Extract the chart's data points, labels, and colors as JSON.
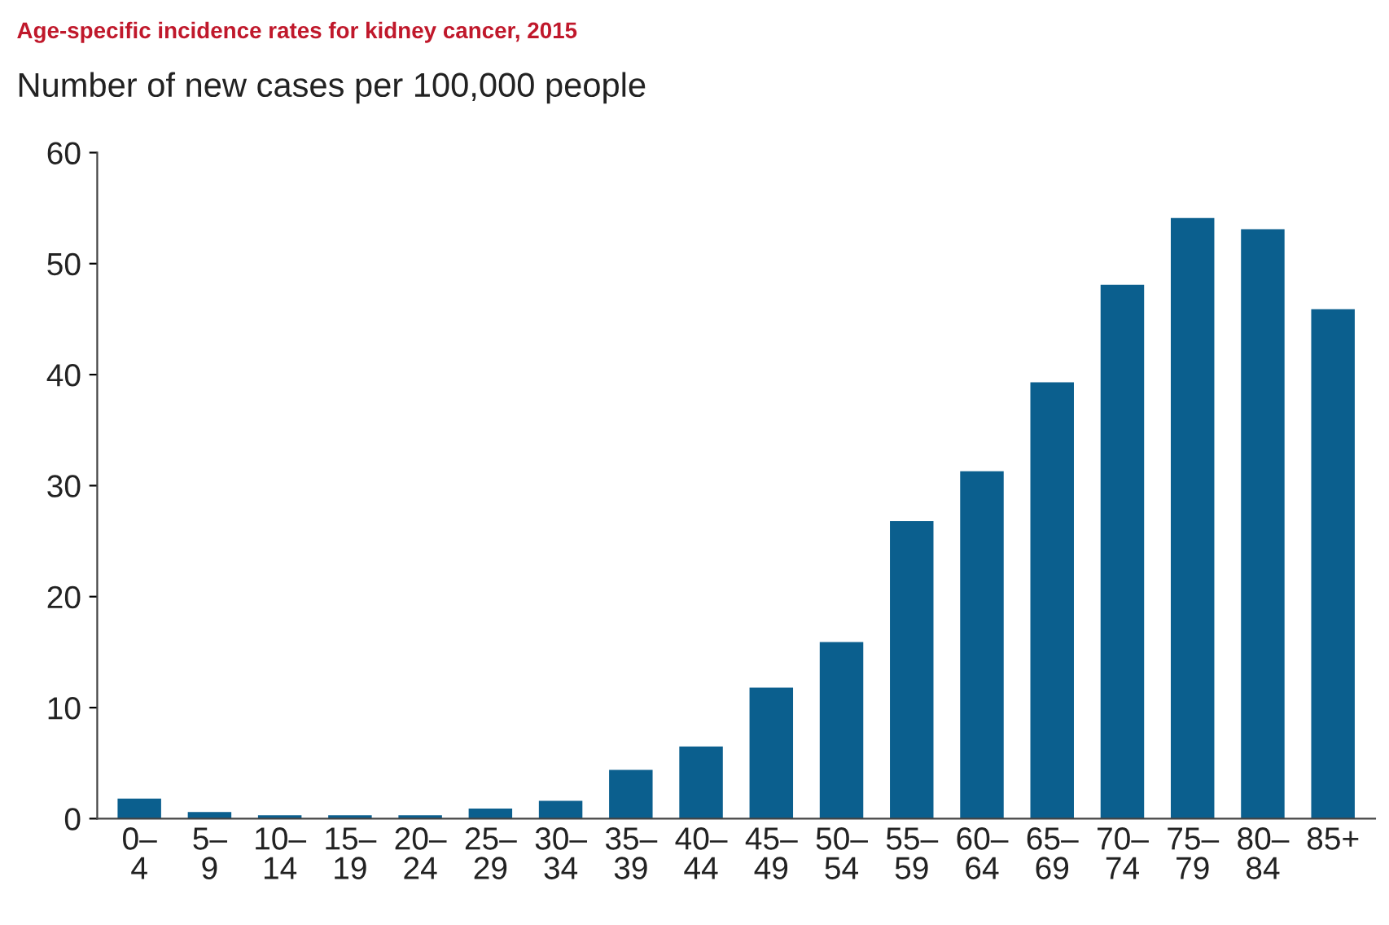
{
  "chart_data": {
    "type": "bar",
    "title": "Age-specific incidence rates for kidney cancer, 2015",
    "ylabel": "Number of new cases per 100,000 people",
    "categories": [
      "0–\n4",
      "5–\n9",
      "10–\n14",
      "15–\n19",
      "20–\n24",
      "25–\n29",
      "30–\n34",
      "35–\n39",
      "40–\n44",
      "45–\n49",
      "50–\n54",
      "55–\n59",
      "60–\n64",
      "65–\n69",
      "70–\n74",
      "75–\n79",
      "80–\n84",
      "85+"
    ],
    "values": [
      1.8,
      0.6,
      0.3,
      0.3,
      0.3,
      0.9,
      1.6,
      4.4,
      6.5,
      11.8,
      15.9,
      26.8,
      31.3,
      39.3,
      48.1,
      54.1,
      53.1,
      45.9
    ],
    "color": "#0b5f8e",
    "ylim": [
      0,
      60
    ],
    "yticks": [
      0,
      10,
      20,
      30,
      40,
      50,
      60
    ],
    "grid": false,
    "legend": false
  }
}
